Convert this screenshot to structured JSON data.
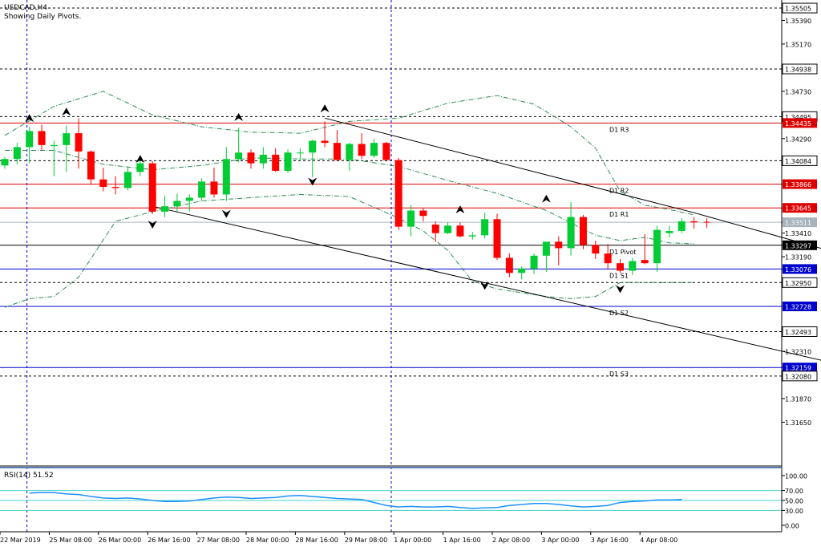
{
  "symbol": "USDCAD,H4",
  "subtitle": "Showing Daily Pivots.",
  "rsi_label": "RSI(14) 51.52",
  "colors": {
    "bull": "#00cc33",
    "bear": "#ff0000",
    "pivot_resist": "#dd0000",
    "pivot_support": "#0000cc",
    "pivot_main": "#000000",
    "bollinger": "#2e8b57",
    "rsi_line": "#1e90ff",
    "rsi_level": "#48d1cc",
    "current_price_line": "#a9b3bc",
    "time_separator": "#0000cc"
  },
  "chart_data": [
    {
      "type": "candlestick",
      "title": "USDCAD,H4",
      "ylim": [
        1.3125,
        1.3558
      ],
      "y_ticks": [
        "1.35505",
        "1.35390",
        "1.35170",
        "1.34938",
        "1.34730",
        "1.34495",
        "1.34435",
        "1.34290",
        "1.34084",
        "1.33866",
        "1.33645",
        "1.33511",
        "1.33410",
        "1.33297",
        "1.33190",
        "1.33076",
        "1.32950",
        "1.32728",
        "1.32493",
        "1.32310",
        "1.32159",
        "1.32080",
        "1.31870",
        "1.31650"
      ],
      "y_tick_values": [
        1.35505,
        1.3539,
        1.3517,
        1.34938,
        1.3473,
        1.34495,
        1.34435,
        1.3429,
        1.34084,
        1.33866,
        1.33645,
        1.33511,
        1.3341,
        1.33297,
        1.3319,
        1.33076,
        1.3295,
        1.32728,
        1.32493,
        1.3231,
        1.32159,
        1.3208,
        1.3187,
        1.3165
      ],
      "boxed_ticks": [
        "1.35505",
        "1.34938",
        "1.34495",
        "1.34084",
        "1.33511",
        "1.32950",
        "1.32493",
        "1.32080"
      ],
      "x_labels": [
        "22 Mar 2019",
        "25 Mar 08:00",
        "26 Mar 00:00",
        "26 Mar 16:00",
        "27 Mar 08:00",
        "28 Mar 00:00",
        "28 Mar 16:00",
        "29 Mar 08:00",
        "1 Apr 00:00",
        "1 Apr 16:00",
        "2 Apr 08:00",
        "3 Apr 00:00",
        "3 Apr 16:00",
        "4 Apr 08:00"
      ],
      "x_label_bars": [
        0,
        4,
        8,
        12,
        16,
        20,
        24,
        28,
        32,
        36,
        40,
        44,
        48,
        52
      ],
      "candles": [
        [
          1.3404,
          1.3412,
          1.3401,
          1.341
        ],
        [
          1.341,
          1.3425,
          1.3405,
          1.3421
        ],
        [
          1.3421,
          1.344,
          1.3406,
          1.3436
        ],
        [
          1.3436,
          1.3442,
          1.3418,
          1.3423
        ],
        [
          1.3422,
          1.3427,
          1.3394,
          1.3423
        ],
        [
          1.3423,
          1.3441,
          1.3398,
          1.3434
        ],
        [
          1.3434,
          1.3448,
          1.3401,
          1.3417
        ],
        [
          1.3417,
          1.3418,
          1.3386,
          1.3391
        ],
        [
          1.3391,
          1.3402,
          1.338,
          1.3384
        ],
        [
          1.3384,
          1.3394,
          1.3377,
          1.3383
        ],
        [
          1.3383,
          1.3403,
          1.3381,
          1.3398
        ],
        [
          1.3398,
          1.3412,
          1.3394,
          1.3406
        ],
        [
          1.3406,
          1.3408,
          1.3359,
          1.3361
        ],
        [
          1.3361,
          1.3376,
          1.3356,
          1.3366
        ],
        [
          1.3366,
          1.3378,
          1.3361,
          1.3371
        ],
        [
          1.3371,
          1.3377,
          1.3361,
          1.3374
        ],
        [
          1.3374,
          1.3392,
          1.3371,
          1.3389
        ],
        [
          1.3389,
          1.3402,
          1.3374,
          1.3377
        ],
        [
          1.3377,
          1.3421,
          1.3371,
          1.341
        ],
        [
          1.341,
          1.3439,
          1.3407,
          1.3416
        ],
        [
          1.3416,
          1.3419,
          1.3401,
          1.3406
        ],
        [
          1.3406,
          1.3421,
          1.3401,
          1.3414
        ],
        [
          1.3414,
          1.342,
          1.3398,
          1.3399
        ],
        [
          1.3399,
          1.3419,
          1.3397,
          1.3416
        ],
        [
          1.3416,
          1.342,
          1.3409,
          1.3416
        ],
        [
          1.3416,
          1.3428,
          1.3393,
          1.3427
        ],
        [
          1.3427,
          1.3445,
          1.3421,
          1.3425
        ],
        [
          1.3425,
          1.3437,
          1.341,
          1.3409
        ],
        [
          1.3409,
          1.3425,
          1.3399,
          1.3424
        ],
        [
          1.3424,
          1.3434,
          1.341,
          1.3413
        ],
        [
          1.3413,
          1.3429,
          1.3411,
          1.3425
        ],
        [
          1.3425,
          1.3426,
          1.341,
          1.3409
        ],
        [
          1.3409,
          1.3411,
          1.3344,
          1.3347
        ],
        [
          1.3347,
          1.3367,
          1.3338,
          1.3362
        ],
        [
          1.3362,
          1.3364,
          1.3352,
          1.3357
        ],
        [
          1.3349,
          1.3352,
          1.3333,
          1.3341
        ],
        [
          1.3341,
          1.3351,
          1.334,
          1.3348
        ],
        [
          1.3348,
          1.3351,
          1.3337,
          1.3338
        ],
        [
          1.3338,
          1.3342,
          1.3335,
          1.3339
        ],
        [
          1.3339,
          1.336,
          1.3336,
          1.3354
        ],
        [
          1.3354,
          1.3359,
          1.3316,
          1.3318
        ],
        [
          1.3318,
          1.3322,
          1.33,
          1.3304
        ],
        [
          1.3304,
          1.331,
          1.3298,
          1.3308
        ],
        [
          1.3308,
          1.3322,
          1.3303,
          1.332
        ],
        [
          1.332,
          1.3331,
          1.3305,
          1.3333
        ],
        [
          1.3333,
          1.3338,
          1.3311,
          1.3327
        ],
        [
          1.3327,
          1.337,
          1.332,
          1.3356
        ],
        [
          1.3356,
          1.3358,
          1.3326,
          1.333
        ],
        [
          1.333,
          1.3334,
          1.3317,
          1.3322
        ],
        [
          1.3322,
          1.3331,
          1.3307,
          1.3313
        ],
        [
          1.3313,
          1.3317,
          1.3304,
          1.3306
        ],
        [
          1.3306,
          1.3318,
          1.3302,
          1.3315
        ],
        [
          1.3316,
          1.334,
          1.3312,
          1.3313
        ],
        [
          1.3313,
          1.3348,
          1.3305,
          1.3344
        ],
        [
          1.3341,
          1.3348,
          1.3337,
          1.3343
        ],
        [
          1.3343,
          1.3355,
          1.3341,
          1.3352
        ],
        [
          1.3352,
          1.3356,
          1.3345,
          1.3351
        ]
      ],
      "pivot_levels": [
        {
          "name": "D1 R3",
          "value": 1.34435,
          "kind": "resist",
          "tick": "1.34435"
        },
        {
          "name": "D1 R2",
          "value": 1.33866,
          "kind": "resist",
          "tick": "1.33866"
        },
        {
          "name": "D1 R1",
          "value": 1.33645,
          "kind": "resist",
          "tick": "1.33645"
        },
        {
          "name": "D1 Pivot",
          "value": 1.33297,
          "kind": "main",
          "tick": "1.33297"
        },
        {
          "name": "D1 S1",
          "value": 1.33076,
          "kind": "support",
          "tick": "1.33076"
        },
        {
          "name": "D1 S2",
          "value": 1.32728,
          "kind": "support",
          "tick": "1.32728"
        },
        {
          "name": "D1 S3",
          "value": 1.32159,
          "kind": "support",
          "tick": "1.32159"
        }
      ],
      "dashed_levels": [
        1.35505,
        1.34938,
        1.34495,
        1.34084,
        1.3295,
        1.32493,
        1.3208
      ],
      "current_price": 1.33511,
      "current_price_tick": "1.33511",
      "channel_upper": [
        [
          26,
          1.3448
        ],
        [
          56,
          1.336
        ],
        [
          70,
          1.3315
        ]
      ],
      "channel_lower": [
        [
          12,
          1.3366
        ],
        [
          56,
          1.325
        ],
        [
          70,
          1.3213
        ]
      ],
      "bollinger_upper": [
        [
          0,
          1.3432
        ],
        [
          4,
          1.3459
        ],
        [
          8,
          1.3473
        ],
        [
          12,
          1.3451
        ],
        [
          16,
          1.344
        ],
        [
          20,
          1.3435
        ],
        [
          24,
          1.3434
        ],
        [
          28,
          1.3445
        ],
        [
          32,
          1.3448
        ],
        [
          36,
          1.3462
        ],
        [
          40,
          1.3469
        ],
        [
          43,
          1.3461
        ],
        [
          46,
          1.344
        ],
        [
          48,
          1.342
        ],
        [
          50,
          1.338
        ],
        [
          52,
          1.3367
        ],
        [
          54,
          1.3363
        ],
        [
          56,
          1.3358
        ]
      ],
      "bollinger_middle": [
        [
          0,
          1.3418
        ],
        [
          4,
          1.3418
        ],
        [
          8,
          1.3405
        ],
        [
          12,
          1.34
        ],
        [
          16,
          1.3404
        ],
        [
          20,
          1.3411
        ],
        [
          24,
          1.341
        ],
        [
          28,
          1.341
        ],
        [
          32,
          1.3403
        ],
        [
          36,
          1.339
        ],
        [
          40,
          1.3378
        ],
        [
          44,
          1.3362
        ],
        [
          48,
          1.3339
        ],
        [
          50,
          1.3334
        ],
        [
          52,
          1.3337
        ],
        [
          54,
          1.3332
        ],
        [
          56,
          1.3331
        ]
      ],
      "bollinger_lower": [
        [
          0,
          1.3272
        ],
        [
          2,
          1.328
        ],
        [
          4,
          1.3282
        ],
        [
          6,
          1.33
        ],
        [
          9,
          1.3352
        ],
        [
          12,
          1.3361
        ],
        [
          16,
          1.3371
        ],
        [
          20,
          1.3374
        ],
        [
          24,
          1.3377
        ],
        [
          28,
          1.3375
        ],
        [
          32,
          1.3355
        ],
        [
          34,
          1.3343
        ],
        [
          36,
          1.3325
        ],
        [
          38,
          1.3296
        ],
        [
          40,
          1.3289
        ],
        [
          44,
          1.3282
        ],
        [
          46,
          1.328
        ],
        [
          48,
          1.3282
        ],
        [
          50,
          1.3295
        ],
        [
          52,
          1.3295
        ],
        [
          56,
          1.3295
        ]
      ],
      "fractals_up": [
        [
          2,
          1.3447
        ],
        [
          5,
          1.3453
        ],
        [
          11,
          1.3409
        ],
        [
          19,
          1.3448
        ],
        [
          26,
          1.3456
        ],
        [
          37,
          1.3362
        ],
        [
          44,
          1.3372
        ]
      ],
      "fractals_down": [
        [
          12,
          1.335
        ],
        [
          18,
          1.336
        ],
        [
          25,
          1.339
        ],
        [
          39,
          1.3293
        ],
        [
          50,
          1.329
        ]
      ]
    },
    {
      "type": "line",
      "title": "RSI(14) 51.52",
      "ylim": [
        0,
        100
      ],
      "y_ticks": [
        "100.00",
        "70.00",
        "50.00",
        "30.00",
        "0.00"
      ],
      "y_tick_values": [
        100,
        70,
        50,
        30,
        0
      ],
      "levels": [
        70,
        50,
        30
      ],
      "values": [
        65,
        66,
        66,
        63,
        62,
        58,
        55,
        54,
        55,
        53,
        50,
        48,
        48,
        49,
        52,
        55,
        57,
        56,
        54,
        55,
        56,
        59,
        60,
        58,
        56,
        54,
        53,
        52,
        46,
        40,
        37,
        38,
        37,
        37,
        38,
        36,
        34,
        35,
        36,
        40,
        42,
        44,
        44,
        42,
        39,
        37,
        38,
        40,
        46,
        48,
        49,
        51,
        51,
        52
      ]
    }
  ]
}
